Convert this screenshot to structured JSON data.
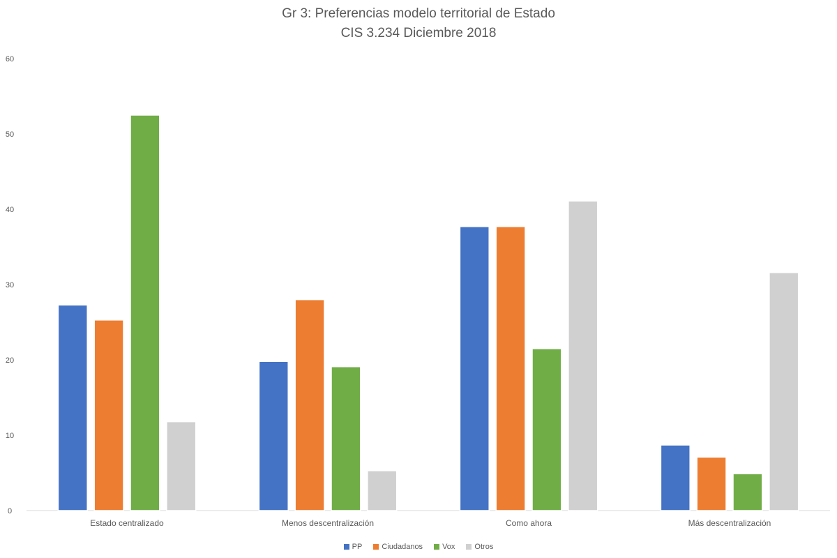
{
  "chart_data": {
    "type": "bar",
    "title": "Gr 3: Preferencias modelo territorial de Estado",
    "subtitle": "CIS 3.234 Diciembre 2018",
    "categories": [
      "Estado centralizado",
      "Menos descentralización",
      "Como ahora",
      "Más descentralización"
    ],
    "series": [
      {
        "name": "PP",
        "color": "#4472C4",
        "values": [
          27.3,
          19.8,
          37.7,
          8.7
        ]
      },
      {
        "name": "Ciudadanos",
        "color": "#ED7D31",
        "values": [
          25.3,
          28.0,
          37.7,
          7.1
        ]
      },
      {
        "name": "Vox",
        "color": "#70AD47",
        "values": [
          52.5,
          19.1,
          21.5,
          4.9
        ]
      },
      {
        "name": "Otros",
        "color": "#D0D0D0",
        "values": [
          11.8,
          5.3,
          41.1,
          31.6
        ]
      }
    ],
    "yticks": [
      "0",
      "10",
      "20",
      "30",
      "40",
      "50",
      "60"
    ],
    "ylim": [
      0,
      60
    ],
    "grid": false,
    "legend": "bottom"
  }
}
